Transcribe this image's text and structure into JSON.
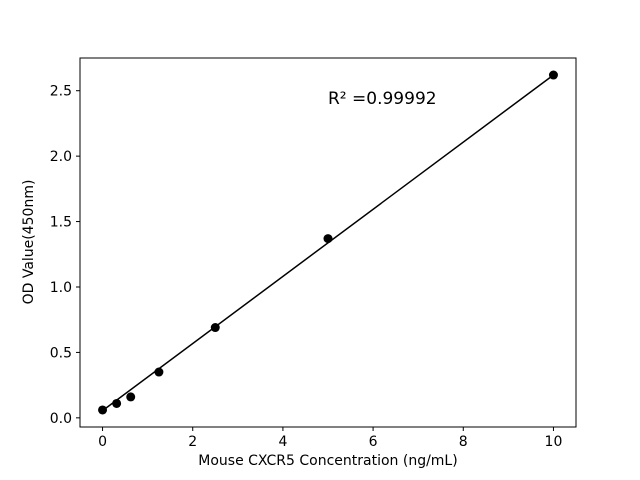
{
  "chart_data": {
    "type": "scatter",
    "title": "",
    "xlabel": "Mouse CXCR5 Concentration (ng/mL)",
    "ylabel": "OD Value(450nm)",
    "annotation": {
      "text": "R² =0.99992",
      "x": 5.0,
      "y": 2.4
    },
    "series": [
      {
        "name": "standard-points",
        "x": [
          0,
          0.3125,
          0.625,
          1.25,
          2.5,
          5,
          10
        ],
        "y": [
          0.06,
          0.11,
          0.16,
          0.35,
          0.69,
          1.37,
          2.62
        ]
      }
    ],
    "fit_line": {
      "x1": 0,
      "y1": 0.055,
      "x2": 10,
      "y2": 2.62
    },
    "xlim": [
      -0.5,
      10.5
    ],
    "ylim": [
      -0.07,
      2.75
    ],
    "xticks": [
      0,
      2,
      4,
      6,
      8,
      10
    ],
    "xtick_labels": [
      "0",
      "2",
      "4",
      "6",
      "8",
      "10"
    ],
    "yticks": [
      0.0,
      0.5,
      1.0,
      1.5,
      2.0,
      2.5
    ],
    "ytick_labels": [
      "0.0",
      "0.5",
      "1.0",
      "1.5",
      "2.0",
      "2.5"
    ],
    "grid": false,
    "legend": "none",
    "colors": {
      "line": "#000000",
      "marker": "#000000",
      "axis": "#000000",
      "background": "#ffffff"
    }
  }
}
